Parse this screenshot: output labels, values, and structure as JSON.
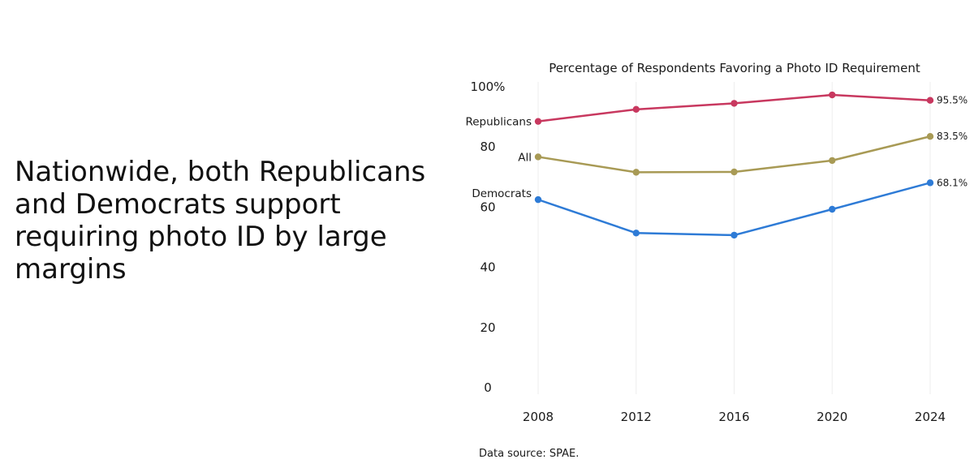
{
  "headline": "Nationwide, both Republicans and Democrats support requiring photo ID by large margins",
  "source": "Data source:  SPAE.",
  "chart_data": {
    "type": "line",
    "title": "Percentage of Respondents Favoring a Photo ID Requirement",
    "xlabel": "",
    "ylabel": "",
    "x": [
      2008,
      2012,
      2016,
      2020,
      2024
    ],
    "x_tick_labels": [
      "2008",
      "2012",
      "2016",
      "2020",
      "2024"
    ],
    "ylim": [
      0,
      100
    ],
    "y_ticks": [
      0,
      20,
      40,
      60,
      80,
      100
    ],
    "y_tick_labels": [
      "0",
      "20",
      "40",
      "60",
      "80",
      "100%"
    ],
    "grid": "vertical",
    "legend": "direct labels",
    "series": [
      {
        "name": "Republicans",
        "color": "#c8385f",
        "values": [
          88.5,
          92.5,
          94.5,
          97.3,
          95.5
        ],
        "end_label": "95.5%"
      },
      {
        "name": "All",
        "color": "#a89a55",
        "values": [
          76.7,
          71.6,
          71.7,
          75.5,
          83.5
        ],
        "end_label": "83.5%"
      },
      {
        "name": "Democrats",
        "color": "#2e7bd6",
        "values": [
          62.5,
          51.4,
          50.7,
          59.3,
          68.1
        ],
        "end_label": "68.1%"
      }
    ]
  }
}
